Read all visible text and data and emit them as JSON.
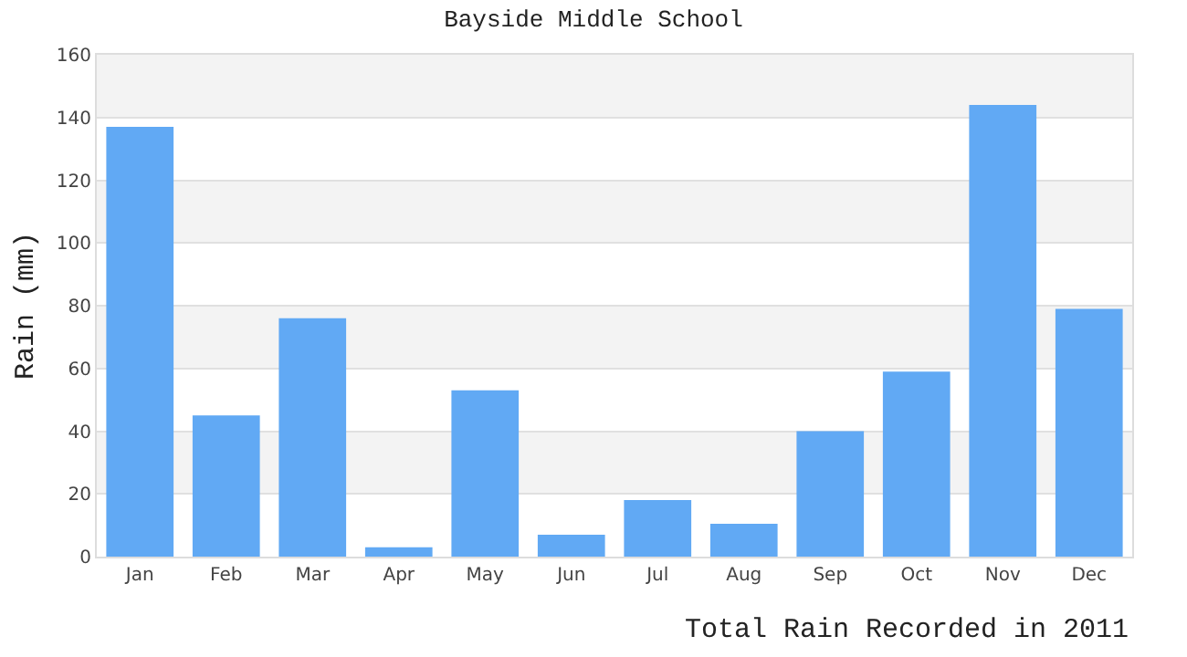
{
  "chart_data": {
    "type": "bar",
    "title": "Bayside Middle School",
    "ylabel": "Rain (mm)",
    "categories": [
      "Jan",
      "Feb",
      "Mar",
      "Apr",
      "May",
      "Jun",
      "Jul",
      "Aug",
      "Sep",
      "Oct",
      "Nov",
      "Dec"
    ],
    "series": [
      {
        "color": "#61a9f4",
        "values": [
          137,
          45,
          76,
          3,
          53,
          7,
          18,
          10.5,
          40,
          59,
          144,
          79
        ]
      }
    ],
    "ylim": [
      0,
      160
    ],
    "yticks": [
      0,
      20,
      40,
      60,
      80,
      100,
      120,
      140,
      160
    ],
    "grid": "y",
    "legend": false,
    "annotations": [
      "Total Rain Recorded in 2011"
    ]
  }
}
